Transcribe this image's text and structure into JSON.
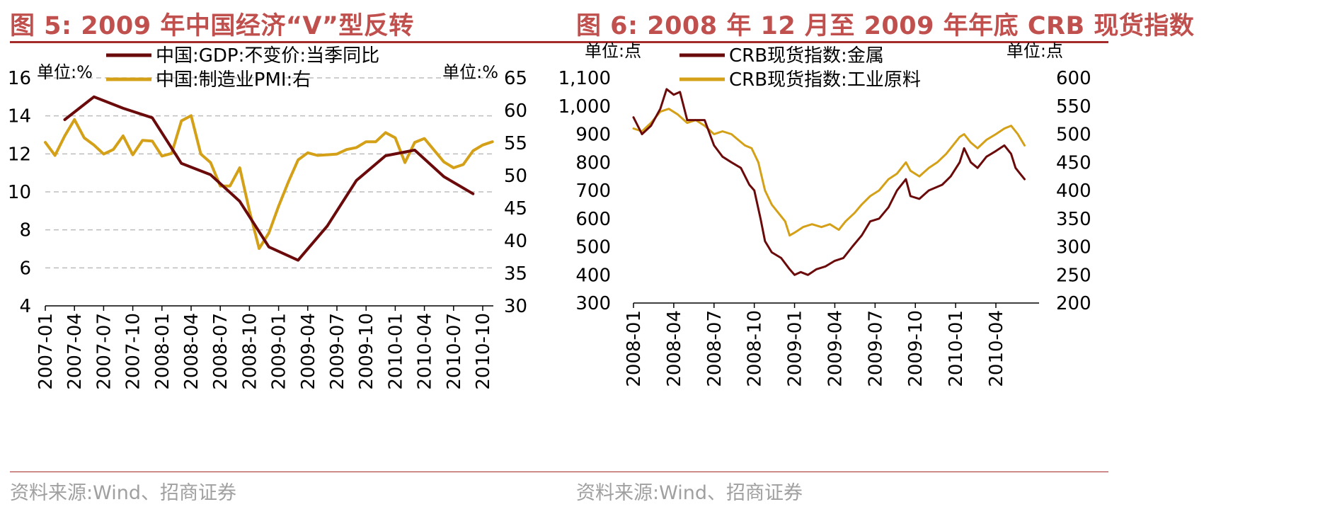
{
  "left": {
    "title": "图 5:  2009 年中国经济“V”型反转",
    "source": "资料来源:Wind、招商证券",
    "chart_data": {
      "type": "line",
      "title": "图 5:  2009 年中国经济“V”型反转",
      "unit_left": "单位:%",
      "unit_right": "单位:%",
      "x_ticks": [
        "2007-01",
        "2007-04",
        "2007-07",
        "2007-10",
        "2008-01",
        "2008-04",
        "2008-07",
        "2008-10",
        "2009-01",
        "2009-04",
        "2009-07",
        "2009-10",
        "2010-01",
        "2010-04",
        "2010-07",
        "2010-10"
      ],
      "ylim_left": [
        4,
        16
      ],
      "yticks_left": [
        "4",
        "6",
        "8",
        "10",
        "12",
        "14",
        "16"
      ],
      "ylim_right": [
        30,
        65
      ],
      "yticks_right": [
        "30",
        "35",
        "40",
        "45",
        "50",
        "55",
        "60",
        "65"
      ],
      "grid": true,
      "legend_position": "top-center",
      "series": [
        {
          "name": "中国:GDP:不变价:当季同比",
          "axis": "left",
          "color": "#6b0a0a",
          "points": [
            [
              "2007-03",
              13.8
            ],
            [
              "2007-06",
              15.0
            ],
            [
              "2007-09",
              14.4
            ],
            [
              "2007-12",
              13.9
            ],
            [
              "2008-03",
              11.5
            ],
            [
              "2008-06",
              10.9
            ],
            [
              "2008-09",
              9.5
            ],
            [
              "2008-12",
              7.1
            ],
            [
              "2009-03",
              6.4
            ],
            [
              "2009-06",
              8.2
            ],
            [
              "2009-09",
              10.6
            ],
            [
              "2009-12",
              11.9
            ],
            [
              "2010-03",
              12.2
            ],
            [
              "2010-06",
              10.8
            ],
            [
              "2010-09",
              9.9
            ]
          ]
        },
        {
          "name": "中国:制造业PMI:右",
          "axis": "right",
          "color": "#d4a017",
          "points": [
            [
              "2007-01",
              55.1
            ],
            [
              "2007-02",
              53.1
            ],
            [
              "2007-03",
              56.1
            ],
            [
              "2007-04",
              58.6
            ],
            [
              "2007-05",
              55.8
            ],
            [
              "2007-06",
              54.7
            ],
            [
              "2007-07",
              53.3
            ],
            [
              "2007-08",
              54.0
            ],
            [
              "2007-09",
              56.1
            ],
            [
              "2007-10",
              53.2
            ],
            [
              "2007-11",
              55.4
            ],
            [
              "2007-12",
              55.3
            ],
            [
              "2008-01",
              53.0
            ],
            [
              "2008-02",
              53.4
            ],
            [
              "2008-03",
              58.4
            ],
            [
              "2008-04",
              59.2
            ],
            [
              "2008-05",
              53.3
            ],
            [
              "2008-06",
              52.0
            ],
            [
              "2008-07",
              48.4
            ],
            [
              "2008-08",
              48.4
            ],
            [
              "2008-09",
              51.2
            ],
            [
              "2008-10",
              44.6
            ],
            [
              "2008-11",
              38.8
            ],
            [
              "2008-12",
              41.2
            ],
            [
              "2009-01",
              45.3
            ],
            [
              "2009-02",
              49.0
            ],
            [
              "2009-03",
              52.4
            ],
            [
              "2009-04",
              53.5
            ],
            [
              "2009-05",
              53.1
            ],
            [
              "2009-06",
              53.2
            ],
            [
              "2009-07",
              53.3
            ],
            [
              "2009-08",
              54.0
            ],
            [
              "2009-09",
              54.3
            ],
            [
              "2009-10",
              55.2
            ],
            [
              "2009-11",
              55.2
            ],
            [
              "2009-12",
              56.6
            ],
            [
              "2010-01",
              55.8
            ],
            [
              "2010-02",
              52.0
            ],
            [
              "2010-03",
              55.1
            ],
            [
              "2010-04",
              55.7
            ],
            [
              "2010-05",
              53.9
            ],
            [
              "2010-06",
              52.1
            ],
            [
              "2010-07",
              51.2
            ],
            [
              "2010-08",
              51.7
            ],
            [
              "2010-09",
              53.8
            ],
            [
              "2010-10",
              54.7
            ],
            [
              "2010-11",
              55.2
            ]
          ]
        }
      ]
    }
  },
  "right": {
    "title": "图 6:  2008 年 12 月至 2009 年年底 CRB 现货指数",
    "source": "资料来源:Wind、招商证券",
    "chart_data": {
      "type": "line",
      "title": "图 6:  2008 年 12 月至 2009 年年底 CRB 现货指数",
      "unit_left": "单位:点",
      "unit_right": "单位:点",
      "x_ticks": [
        "2008-01",
        "2008-04",
        "2008-07",
        "2008-10",
        "2009-01",
        "2009-04",
        "2009-07",
        "2009-10",
        "2010-01",
        "2010-04"
      ],
      "ylim_left": [
        300,
        1100
      ],
      "yticks_left": [
        "300",
        "400",
        "500",
        "600",
        "700",
        "800",
        "900",
        "1,000",
        "1,100"
      ],
      "ylim_right": [
        200,
        600
      ],
      "yticks_right": [
        "200",
        "250",
        "300",
        "350",
        "400",
        "450",
        "500",
        "550",
        "600"
      ],
      "grid": false,
      "legend_position": "top-center",
      "series": [
        {
          "name": "CRB现货指数:金属",
          "axis": "left",
          "color": "#6b0a0a",
          "points": [
            [
              "2008-01-01",
              960
            ],
            [
              "2008-01-20",
              900
            ],
            [
              "2008-02-10",
              930
            ],
            [
              "2008-03-01",
              990
            ],
            [
              "2008-03-15",
              1060
            ],
            [
              "2008-04-01",
              1040
            ],
            [
              "2008-04-15",
              1050
            ],
            [
              "2008-05-01",
              950
            ],
            [
              "2008-05-20",
              950
            ],
            [
              "2008-06-10",
              950
            ],
            [
              "2008-07-01",
              860
            ],
            [
              "2008-07-20",
              820
            ],
            [
              "2008-08-10",
              800
            ],
            [
              "2008-09-01",
              780
            ],
            [
              "2008-09-20",
              720
            ],
            [
              "2008-10-01",
              700
            ],
            [
              "2008-10-15",
              600
            ],
            [
              "2008-10-25",
              520
            ],
            [
              "2008-11-10",
              480
            ],
            [
              "2008-12-01",
              460
            ],
            [
              "2008-12-20",
              420
            ],
            [
              "2009-01-01",
              400
            ],
            [
              "2009-01-15",
              410
            ],
            [
              "2009-02-01",
              400
            ],
            [
              "2009-02-20",
              420
            ],
            [
              "2009-03-10",
              430
            ],
            [
              "2009-04-01",
              450
            ],
            [
              "2009-04-20",
              460
            ],
            [
              "2009-05-10",
              500
            ],
            [
              "2009-06-01",
              540
            ],
            [
              "2009-06-20",
              590
            ],
            [
              "2009-07-10",
              600
            ],
            [
              "2009-08-01",
              640
            ],
            [
              "2009-08-20",
              700
            ],
            [
              "2009-09-10",
              740
            ],
            [
              "2009-09-20",
              680
            ],
            [
              "2009-10-10",
              670
            ],
            [
              "2009-11-01",
              700
            ],
            [
              "2009-12-01",
              720
            ],
            [
              "2009-12-20",
              750
            ],
            [
              "2010-01-10",
              800
            ],
            [
              "2010-01-20",
              850
            ],
            [
              "2010-02-05",
              800
            ],
            [
              "2010-02-20",
              780
            ],
            [
              "2010-03-10",
              820
            ],
            [
              "2010-04-01",
              840
            ],
            [
              "2010-04-20",
              860
            ],
            [
              "2010-05-05",
              830
            ],
            [
              "2010-05-15",
              780
            ],
            [
              "2010-05-25",
              760
            ],
            [
              "2010-06-05",
              740
            ]
          ]
        },
        {
          "name": "CRB现货指数:工业原料",
          "axis": "right",
          "color": "#d4a017",
          "points": [
            [
              "2008-01-01",
              510
            ],
            [
              "2008-01-20",
              505
            ],
            [
              "2008-02-10",
              520
            ],
            [
              "2008-03-01",
              540
            ],
            [
              "2008-03-20",
              545
            ],
            [
              "2008-04-10",
              535
            ],
            [
              "2008-05-01",
              520
            ],
            [
              "2008-05-20",
              525
            ],
            [
              "2008-06-10",
              515
            ],
            [
              "2008-07-01",
              500
            ],
            [
              "2008-07-20",
              505
            ],
            [
              "2008-08-10",
              500
            ],
            [
              "2008-08-25",
              490
            ],
            [
              "2008-09-10",
              480
            ],
            [
              "2008-09-25",
              475
            ],
            [
              "2008-10-10",
              450
            ],
            [
              "2008-10-25",
              400
            ],
            [
              "2008-11-10",
              375
            ],
            [
              "2008-11-25",
              360
            ],
            [
              "2008-12-10",
              345
            ],
            [
              "2008-12-20",
              320
            ],
            [
              "2009-01-01",
              325
            ],
            [
              "2009-01-20",
              335
            ],
            [
              "2009-02-10",
              340
            ],
            [
              "2009-03-01",
              335
            ],
            [
              "2009-03-20",
              340
            ],
            [
              "2009-04-10",
              330
            ],
            [
              "2009-04-25",
              345
            ],
            [
              "2009-05-15",
              360
            ],
            [
              "2009-06-01",
              375
            ],
            [
              "2009-06-20",
              390
            ],
            [
              "2009-07-10",
              400
            ],
            [
              "2009-08-01",
              420
            ],
            [
              "2009-08-20",
              430
            ],
            [
              "2009-09-10",
              450
            ],
            [
              "2009-09-20",
              435
            ],
            [
              "2009-10-10",
              425
            ],
            [
              "2009-11-01",
              440
            ],
            [
              "2009-11-20",
              450
            ],
            [
              "2009-12-10",
              465
            ],
            [
              "2009-12-25",
              480
            ],
            [
              "2010-01-10",
              495
            ],
            [
              "2010-01-20",
              500
            ],
            [
              "2010-02-05",
              485
            ],
            [
              "2010-02-20",
              475
            ],
            [
              "2010-03-10",
              490
            ],
            [
              "2010-04-01",
              500
            ],
            [
              "2010-04-20",
              510
            ],
            [
              "2010-05-05",
              515
            ],
            [
              "2010-05-20",
              500
            ],
            [
              "2010-06-05",
              480
            ]
          ]
        }
      ]
    }
  }
}
